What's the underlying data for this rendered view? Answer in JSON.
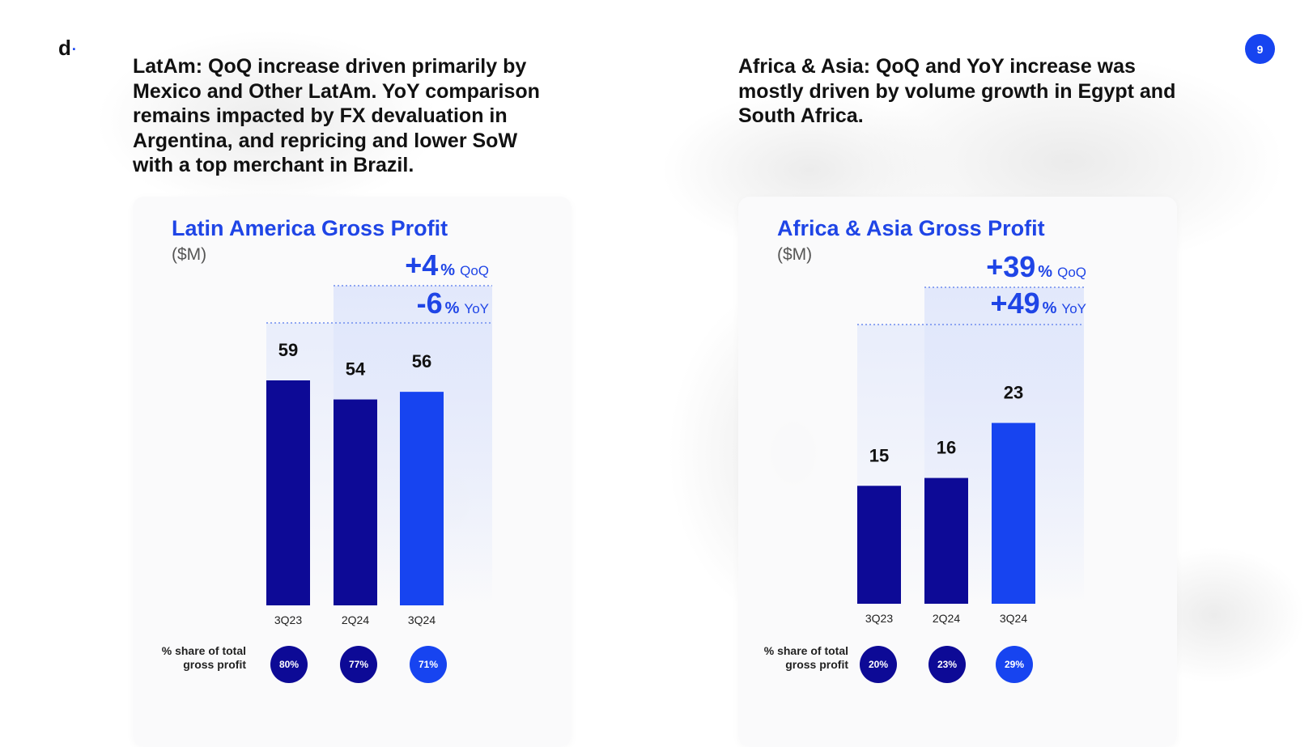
{
  "page": {
    "logo_text": "d",
    "logo_dot": "·",
    "page_number": "9",
    "accent_color": "#1744f0",
    "dark_bar_color": "#0d0a96",
    "light_bar_color": "#1744f0"
  },
  "left": {
    "headline": "LatAm: QoQ increase driven primarily by Mexico and Other LatAm. YoY comparison remains impacted by FX devaluation in Argentina, and repricing and lower SoW with a top merchant in Brazil.",
    "share_label_line1": "% share of total",
    "share_label_line2": "gross profit",
    "shares": [
      "80%",
      "77%",
      "71%"
    ]
  },
  "right": {
    "headline": "Africa & Asia: QoQ and YoY increase was mostly driven by volume growth in Egypt and South Africa.",
    "share_label_line1": "% share of total",
    "share_label_line2": "gross profit",
    "shares": [
      "20%",
      "23%",
      "29%"
    ]
  },
  "chart_data": [
    {
      "type": "bar",
      "title": "Latin America Gross Profit",
      "unit_label": "($M)",
      "categories": [
        "3Q23",
        "2Q24",
        "3Q24"
      ],
      "values": [
        59,
        54,
        56
      ],
      "value_labels": [
        "59",
        "54",
        "56"
      ],
      "ylim": [
        0,
        59
      ],
      "changes": [
        {
          "value": "+4",
          "pct": "%",
          "label": "QoQ"
        },
        {
          "value": "-6",
          "pct": "%",
          "label": "YoY"
        }
      ],
      "grid": false
    },
    {
      "type": "bar",
      "title": "Africa & Asia Gross Profit",
      "unit_label": "($M)",
      "categories": [
        "3Q23",
        "2Q24",
        "3Q24"
      ],
      "values": [
        15,
        16,
        23
      ],
      "value_labels": [
        "15",
        "16",
        "23"
      ],
      "ylim": [
        0,
        35
      ],
      "changes": [
        {
          "value": "+39",
          "pct": "%",
          "label": "QoQ"
        },
        {
          "value": "+49",
          "pct": "%",
          "label": "YoY"
        }
      ],
      "grid": false
    }
  ]
}
